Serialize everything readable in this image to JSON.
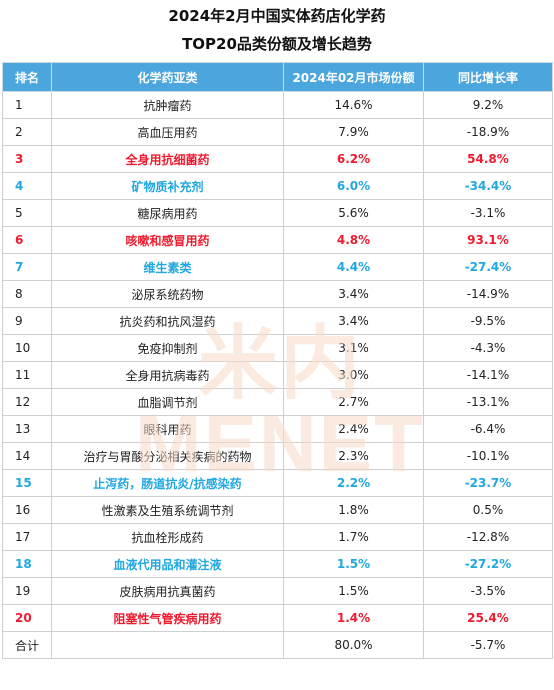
{
  "title_line1": "2024年2月中国实体药店化学药",
  "title_line2": "TOP20品类份额及增长趋势",
  "headers": [
    "排名",
    "化学药亚类",
    "2024年02月市场份额",
    "同比增长率"
  ],
  "watermark": "米内MENET",
  "colors": {
    "header_bg": "#4aa6dd",
    "highlight_red": "#ee1b2f",
    "highlight_blue": "#21a8e0"
  },
  "rows": [
    {
      "rank": "1",
      "category": "抗肿瘤药",
      "share": "14.6%",
      "growth": "9.2%",
      "highlight": ""
    },
    {
      "rank": "2",
      "category": "高血压用药",
      "share": "7.9%",
      "growth": "-18.9%",
      "highlight": ""
    },
    {
      "rank": "3",
      "category": "全身用抗细菌药",
      "share": "6.2%",
      "growth": "54.8%",
      "highlight": "red"
    },
    {
      "rank": "4",
      "category": "矿物质补充剂",
      "share": "6.0%",
      "growth": "-34.4%",
      "highlight": "blue"
    },
    {
      "rank": "5",
      "category": "糖尿病用药",
      "share": "5.6%",
      "growth": "-3.1%",
      "highlight": ""
    },
    {
      "rank": "6",
      "category": "咳嗽和感冒用药",
      "share": "4.8%",
      "growth": "93.1%",
      "highlight": "red"
    },
    {
      "rank": "7",
      "category": "维生素类",
      "share": "4.4%",
      "growth": "-27.4%",
      "highlight": "blue"
    },
    {
      "rank": "8",
      "category": "泌尿系统药物",
      "share": "3.4%",
      "growth": "-14.9%",
      "highlight": ""
    },
    {
      "rank": "9",
      "category": "抗炎药和抗风湿药",
      "share": "3.4%",
      "growth": "-9.5%",
      "highlight": ""
    },
    {
      "rank": "10",
      "category": "免疫抑制剂",
      "share": "3.1%",
      "growth": "-4.3%",
      "highlight": ""
    },
    {
      "rank": "11",
      "category": "全身用抗病毒药",
      "share": "3.0%",
      "growth": "-14.1%",
      "highlight": ""
    },
    {
      "rank": "12",
      "category": "血脂调节剂",
      "share": "2.7%",
      "growth": "-13.1%",
      "highlight": ""
    },
    {
      "rank": "13",
      "category": "眼科用药",
      "share": "2.4%",
      "growth": "-6.4%",
      "highlight": ""
    },
    {
      "rank": "14",
      "category": "治疗与胃酸分泌相关疾病的药物",
      "share": "2.3%",
      "growth": "-10.1%",
      "highlight": ""
    },
    {
      "rank": "15",
      "category": "止泻药，肠道抗炎/抗感染药",
      "share": "2.2%",
      "growth": "-23.7%",
      "highlight": "blue"
    },
    {
      "rank": "16",
      "category": "性激素及生殖系统调节剂",
      "share": "1.8%",
      "growth": "0.5%",
      "highlight": ""
    },
    {
      "rank": "17",
      "category": "抗血栓形成药",
      "share": "1.7%",
      "growth": "-12.8%",
      "highlight": ""
    },
    {
      "rank": "18",
      "category": "血液代用品和灌注液",
      "share": "1.5%",
      "growth": "-27.2%",
      "highlight": "blue"
    },
    {
      "rank": "19",
      "category": "皮肤病用抗真菌药",
      "share": "1.5%",
      "growth": "-3.5%",
      "highlight": ""
    },
    {
      "rank": "20",
      "category": "阻塞性气管疾病用药",
      "share": "1.4%",
      "growth": "25.4%",
      "highlight": "red"
    },
    {
      "rank": "合计",
      "category": "",
      "share": "80.0%",
      "growth": "-5.7%",
      "highlight": ""
    }
  ]
}
